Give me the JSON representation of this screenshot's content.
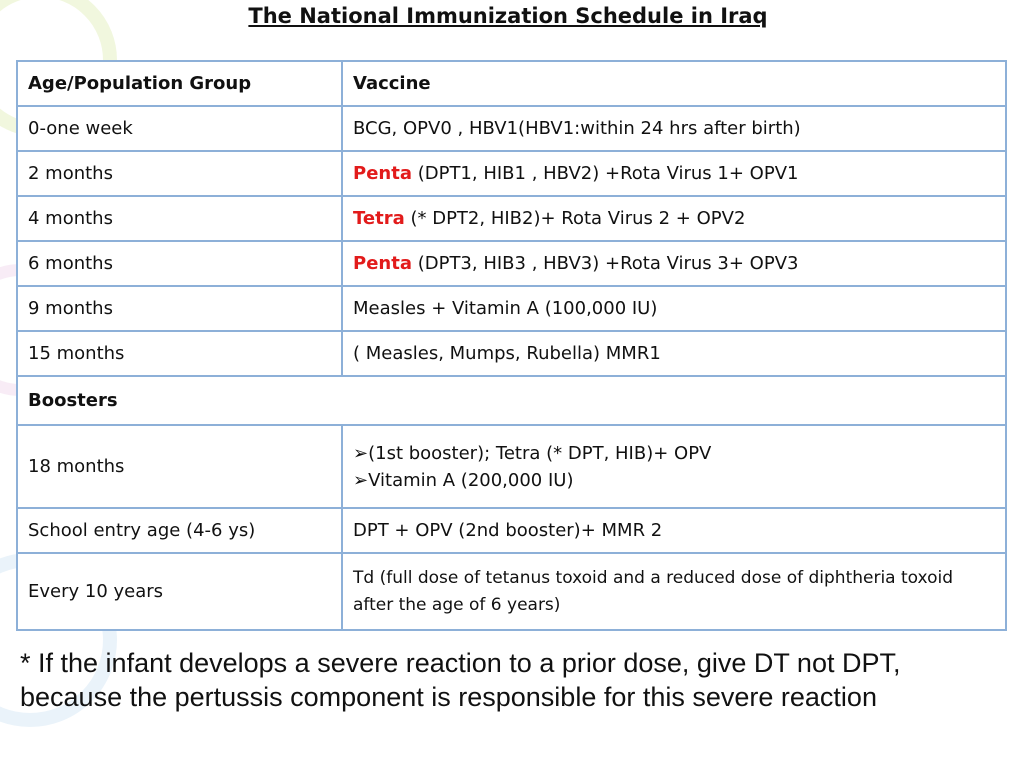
{
  "title": "The National Immunization Schedule in Iraq",
  "table": {
    "header": [
      "Age/Population Group",
      "Vaccine"
    ],
    "rows": [
      {
        "group": "0-one week",
        "vaccine": "BCG, OPV0 , HBV1(HBV1:within 24 hrs after birth)"
      },
      {
        "group": "2 months",
        "highlight": "Penta",
        "vaccine": "(DPT1, HIB1 , HBV2) +Rota Virus 1+ OPV1"
      },
      {
        "group": "4 months",
        "highlight": "Tetra",
        "vaccine": "(* DPT2, HIB2)+ Rota Virus 2 + OPV2"
      },
      {
        "group": "6 months",
        "highlight": "Penta",
        "vaccine": "(DPT3, HIB3 , HBV3) +Rota Virus 3+ OPV3"
      },
      {
        "group": "9 months",
        "vaccine": "Measles + Vitamin A (100,000 IU)"
      },
      {
        "group": "15 months",
        "vaccine": "( Measles, Mumps, Rubella) MMR1"
      }
    ],
    "section": "Boosters",
    "booster_rows": [
      {
        "group": "18 months",
        "items": [
          "(1st booster); Tetra (* DPT, HIB)+ OPV",
          "Vitamin A (200,000 IU)"
        ]
      },
      {
        "group": "School entry age (4-6 ys)",
        "vaccine": "DPT + OPV (2nd booster)+ MMR 2"
      },
      {
        "group": "Every 10 years",
        "vaccine": "Td (full dose of tetanus toxoid and a reduced dose of diphtheria toxoid after the age of 6 years)"
      }
    ]
  },
  "footnote": "* If the infant develops a severe reaction to a prior dose, give DT not DPT, because the pertussis component is responsible for this severe reaction"
}
